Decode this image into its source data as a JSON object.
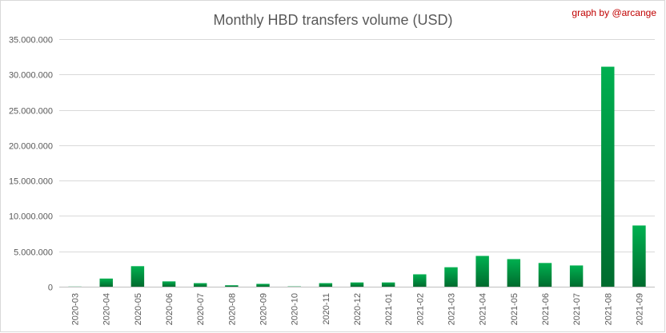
{
  "chart_data": {
    "type": "bar",
    "title": "Monthly HBD transfers volume (USD)",
    "credit": "graph by @arcange",
    "xlabel": "",
    "ylabel": "",
    "categories": [
      "2020-03",
      "2020-04",
      "2020-05",
      "2020-06",
      "2020-07",
      "2020-08",
      "2020-09",
      "2020-10",
      "2020-11",
      "2020-12",
      "2021-01",
      "2021-02",
      "2021-03",
      "2021-04",
      "2021-05",
      "2021-06",
      "2021-07",
      "2021-08",
      "2021-09"
    ],
    "values": [
      20000,
      1150000,
      2900000,
      750000,
      500000,
      200000,
      400000,
      40000,
      500000,
      600000,
      600000,
      1750000,
      2750000,
      4350000,
      3900000,
      3350000,
      3000000,
      31100000,
      8650000
    ],
    "ylim": [
      0,
      35000000
    ],
    "yticks": [
      0,
      5000000,
      10000000,
      15000000,
      20000000,
      25000000,
      30000000,
      35000000
    ],
    "ytick_labels": [
      "0",
      "5.000.000",
      "10.000.000",
      "15.000.000",
      "20.000.000",
      "25.000.000",
      "30.000.000",
      "35.000.000"
    ],
    "grid": true,
    "legend": "none",
    "colors": {
      "bar_light": "#00b050",
      "bar_dark": "#006b2e"
    }
  }
}
